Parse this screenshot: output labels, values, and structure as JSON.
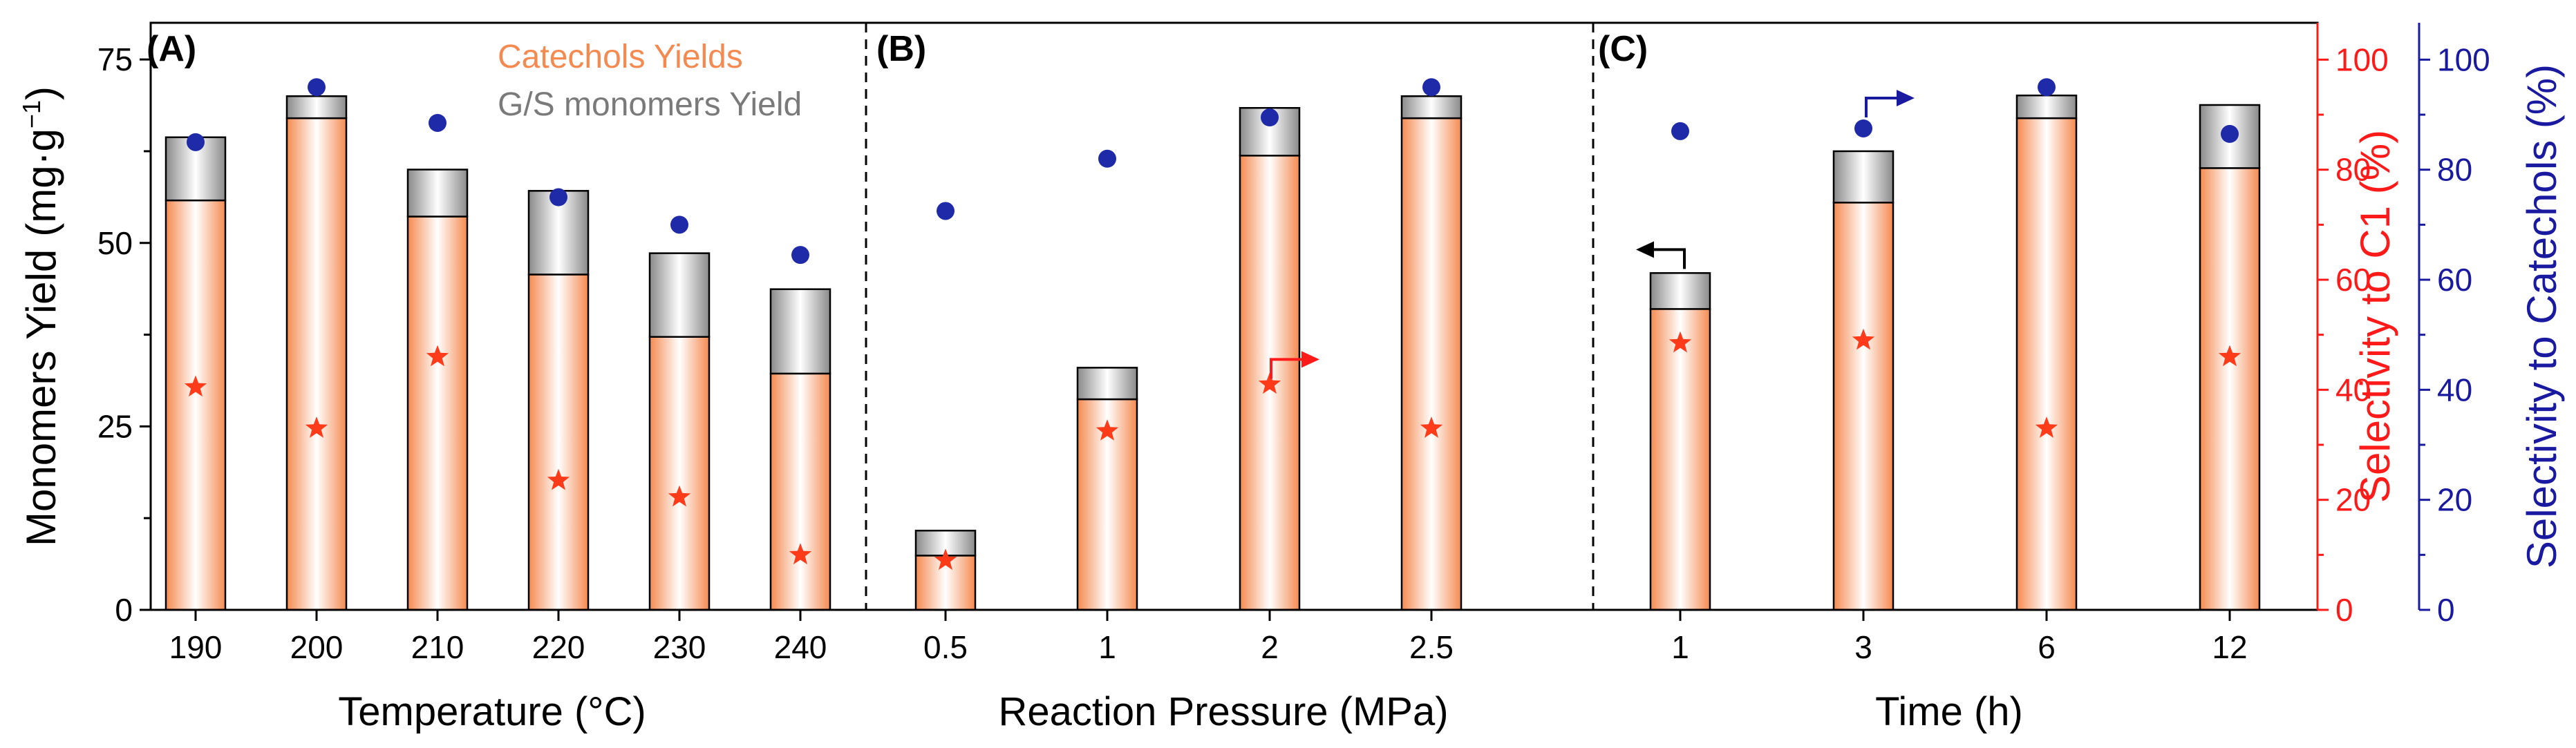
{
  "chart_data": {
    "type": "bar",
    "stacked": true,
    "left_axis": {
      "label": "Monomers Yield",
      "unit_parts": [
        "(mg·g",
        "−1",
        ")"
      ],
      "ylim": [
        0,
        80
      ],
      "ticks": [
        0,
        25,
        50,
        75
      ]
    },
    "right_axis_c1": {
      "label": "Selectivity to C1 (%)",
      "ylim": [
        0,
        106.7
      ],
      "ticks": [
        0,
        20,
        40,
        60,
        80,
        100
      ],
      "color": "#ff1a1a"
    },
    "right_axis_catechols": {
      "label": "Selectivity to Catechols (%)",
      "ylim": [
        0,
        106.7
      ],
      "ticks": [
        0,
        20,
        40,
        60,
        80,
        100
      ],
      "color": "#1a1aa0"
    },
    "legend": {
      "position": "top-inside-panel-A",
      "items": [
        {
          "label": "Catechols Yields",
          "color": "#f58a50"
        },
        {
          "label": "G/S monomers Yield",
          "color": "#808080"
        }
      ]
    },
    "panels": [
      {
        "tag": "(A)",
        "xlabel": "Temperature (°C)",
        "categories": [
          "190",
          "200",
          "210",
          "220",
          "230",
          "240"
        ],
        "catechols": [
          55.8,
          67.0,
          53.6,
          45.7,
          37.2,
          32.2
        ],
        "gs": [
          8.6,
          3.0,
          6.4,
          11.4,
          11.4,
          11.5
        ],
        "sel_c1": [
          40.5,
          33.0,
          46.0,
          23.5,
          20.5,
          10.0
        ],
        "sel_catechols": [
          85.0,
          95.0,
          88.5,
          75.0,
          70.0,
          64.5
        ]
      },
      {
        "tag": "(B)",
        "xlabel": "Reaction Pressure (MPa)",
        "categories": [
          "0.5",
          "1",
          "2",
          "2.5"
        ],
        "catechols": [
          7.4,
          28.7,
          61.9,
          67.0
        ],
        "gs": [
          3.4,
          4.3,
          6.5,
          3.0
        ],
        "sel_c1": [
          9.0,
          32.5,
          41.0,
          33.0
        ],
        "sel_catechols": [
          72.5,
          82.0,
          89.5,
          95.0
        ]
      },
      {
        "tag": "(C)",
        "xlabel": "Time (h)",
        "categories": [
          "1",
          "3",
          "6",
          "12"
        ],
        "catechols": [
          41.0,
          55.5,
          67.0,
          60.2
        ],
        "gs": [
          4.9,
          7.0,
          3.1,
          8.6
        ],
        "sel_c1": [
          48.5,
          49.0,
          33.0,
          46.0
        ],
        "sel_catechols": [
          87.0,
          87.5,
          95.0,
          86.5
        ]
      }
    ],
    "annotations": [
      {
        "panel": "B",
        "category": "2",
        "type": "arrow",
        "direction": "right",
        "color": "#ff1a1a",
        "meaning": "stars refer to Selectivity to C1 axis"
      },
      {
        "panel": "C",
        "category": "1",
        "type": "arrow",
        "direction": "left",
        "color": "#000000",
        "meaning": "bars refer to Monomers Yield axis"
      },
      {
        "panel": "C",
        "category": "3",
        "type": "arrow",
        "direction": "right",
        "color": "#1a1aa0",
        "meaning": "dots refer to Selectivity to Catechols axis"
      }
    ]
  }
}
